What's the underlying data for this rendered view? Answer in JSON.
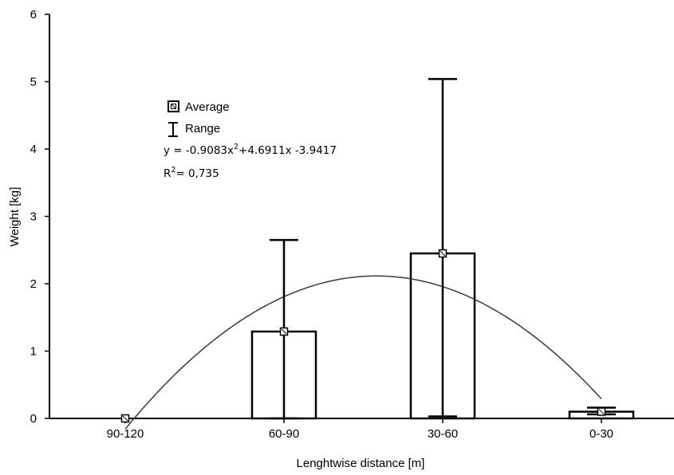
{
  "chart_data": {
    "type": "bar",
    "categories": [
      "90-120",
      "60-90",
      "30-60",
      "0-30"
    ],
    "average": [
      0.0,
      1.29,
      2.45,
      0.1
    ],
    "range_min": [
      0.0,
      0.0,
      0.03,
      0.06
    ],
    "range_max": [
      0.0,
      2.65,
      5.04,
      0.16
    ],
    "xlabel": "Lenghtwise distance [m]",
    "ylabel": "Weight [kg]",
    "ylim": [
      0,
      6
    ],
    "yticks": [
      0,
      1,
      2,
      3,
      4,
      5,
      6
    ],
    "grid": false,
    "legend": {
      "position": "top-left",
      "average_label": "Average",
      "range_label": "Range"
    },
    "trendline": {
      "type": "polynomial",
      "a": -0.9083,
      "b": 4.6911,
      "c": -3.9417,
      "x_domain": [
        1,
        4
      ],
      "eq_prefix": "y = -0.9083x",
      "eq_exp": "2",
      "eq_suffix": "+4.6911x -3.9417",
      "r2_prefix": "R",
      "r2_exp": "2",
      "r2_suffix": "= 0,735"
    }
  },
  "colors": {
    "bar_fill": "#ffffff",
    "stroke": "#000000",
    "trend": "#3a3a3a"
  }
}
